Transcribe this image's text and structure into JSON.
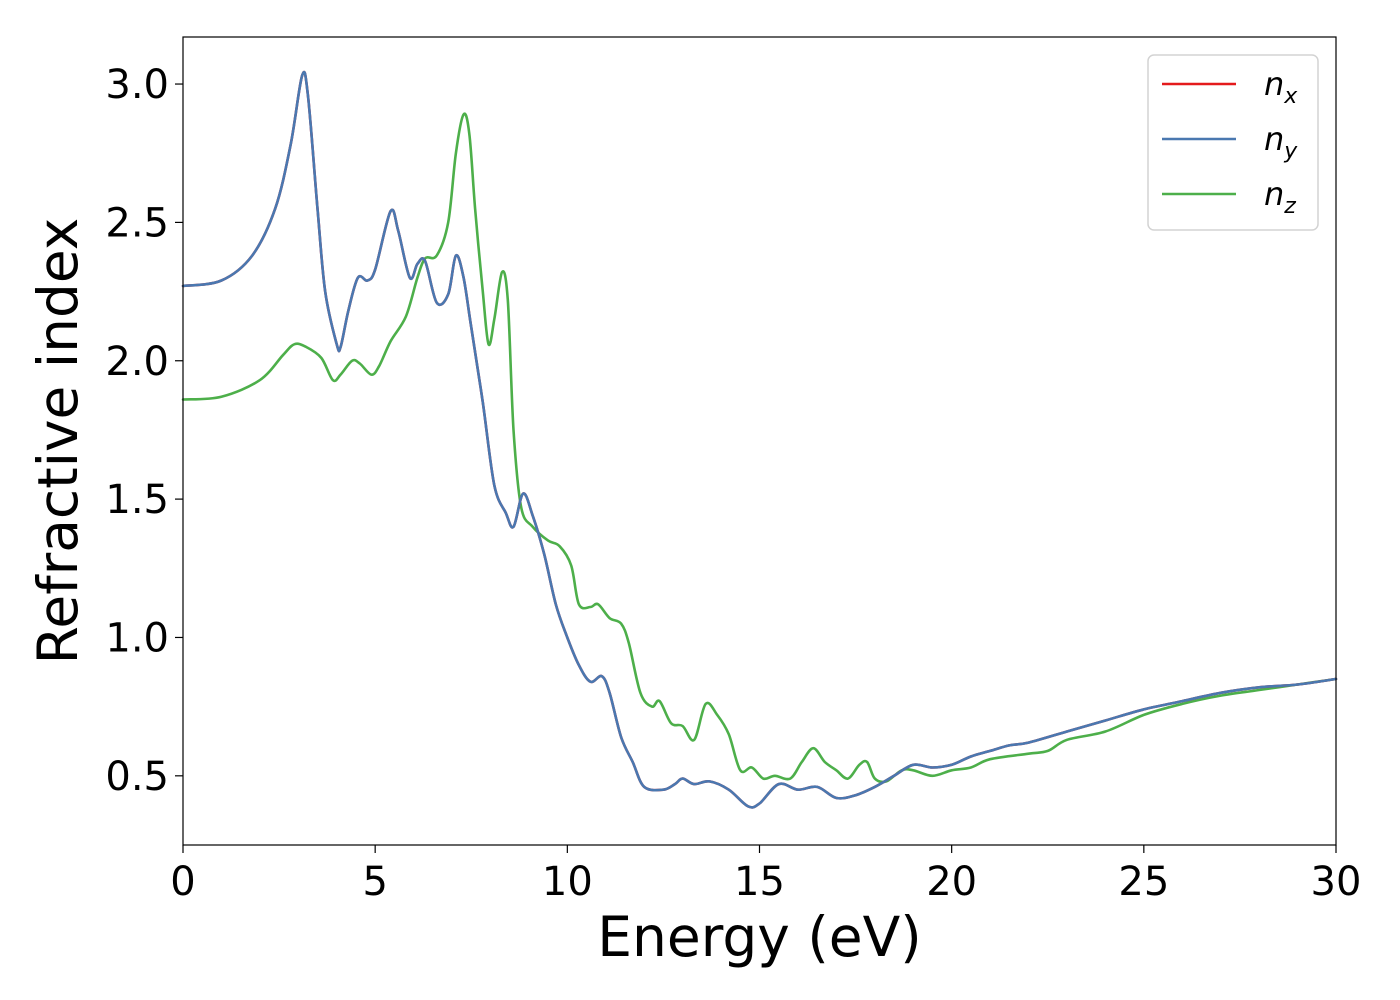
{
  "chart_data": {
    "type": "line",
    "title": "",
    "xlabel": "Energy (eV)",
    "ylabel": "Refractive index",
    "xlim": [
      0,
      30
    ],
    "ylim": [
      0.25,
      3.17
    ],
    "xticks": [
      "0",
      "5",
      "10",
      "15",
      "20",
      "25",
      "30"
    ],
    "yticks": [
      "0.5",
      "1.0",
      "1.5",
      "2.0",
      "2.5",
      "3.0"
    ],
    "grid": false,
    "legend_position": "top-right",
    "series": [
      {
        "name": "n_x",
        "label_base": "n",
        "label_sub": "x",
        "color": "#e41a1c",
        "points": [
          [
            0,
            2.27
          ],
          [
            1,
            2.29
          ],
          [
            1.8,
            2.38
          ],
          [
            2.4,
            2.55
          ],
          [
            2.8,
            2.78
          ],
          [
            3.1,
            3.03
          ],
          [
            3.25,
            2.96
          ],
          [
            3.5,
            2.55
          ],
          [
            3.7,
            2.25
          ],
          [
            4.0,
            2.06
          ],
          [
            4.1,
            2.05
          ],
          [
            4.3,
            2.18
          ],
          [
            4.55,
            2.3
          ],
          [
            4.8,
            2.29
          ],
          [
            5.0,
            2.33
          ],
          [
            5.4,
            2.54
          ],
          [
            5.6,
            2.47
          ],
          [
            5.9,
            2.3
          ],
          [
            6.1,
            2.35
          ],
          [
            6.3,
            2.36
          ],
          [
            6.6,
            2.21
          ],
          [
            6.9,
            2.24
          ],
          [
            7.1,
            2.38
          ],
          [
            7.3,
            2.3
          ],
          [
            7.5,
            2.12
          ],
          [
            7.8,
            1.85
          ],
          [
            8.1,
            1.55
          ],
          [
            8.4,
            1.45
          ],
          [
            8.6,
            1.4
          ],
          [
            8.85,
            1.52
          ],
          [
            9.1,
            1.44
          ],
          [
            9.4,
            1.3
          ],
          [
            9.7,
            1.12
          ],
          [
            10.0,
            1.0
          ],
          [
            10.3,
            0.9
          ],
          [
            10.6,
            0.84
          ],
          [
            10.9,
            0.86
          ],
          [
            11.1,
            0.8
          ],
          [
            11.4,
            0.64
          ],
          [
            11.7,
            0.55
          ],
          [
            12.0,
            0.46
          ],
          [
            12.5,
            0.45
          ],
          [
            12.8,
            0.47
          ],
          [
            13.0,
            0.49
          ],
          [
            13.3,
            0.47
          ],
          [
            13.7,
            0.48
          ],
          [
            14.2,
            0.45
          ],
          [
            14.7,
            0.39
          ],
          [
            15.0,
            0.4
          ],
          [
            15.5,
            0.47
          ],
          [
            16.0,
            0.45
          ],
          [
            16.5,
            0.46
          ],
          [
            17.0,
            0.42
          ],
          [
            17.5,
            0.43
          ],
          [
            18.0,
            0.46
          ],
          [
            18.5,
            0.5
          ],
          [
            19.0,
            0.54
          ],
          [
            19.5,
            0.53
          ],
          [
            20.0,
            0.54
          ],
          [
            20.5,
            0.57
          ],
          [
            21.0,
            0.59
          ],
          [
            21.5,
            0.61
          ],
          [
            22.0,
            0.62
          ],
          [
            23.0,
            0.66
          ],
          [
            24.0,
            0.7
          ],
          [
            25.0,
            0.74
          ],
          [
            26.0,
            0.77
          ],
          [
            27.0,
            0.8
          ],
          [
            28.0,
            0.82
          ],
          [
            29.0,
            0.83
          ],
          [
            30.0,
            0.85
          ]
        ]
      },
      {
        "name": "n_y",
        "label_base": "n",
        "label_sub": "y",
        "color": "#4a78b0",
        "points": [
          [
            0,
            2.27
          ],
          [
            1,
            2.29
          ],
          [
            1.8,
            2.38
          ],
          [
            2.4,
            2.55
          ],
          [
            2.8,
            2.78
          ],
          [
            3.1,
            3.03
          ],
          [
            3.25,
            2.96
          ],
          [
            3.5,
            2.55
          ],
          [
            3.7,
            2.25
          ],
          [
            4.0,
            2.06
          ],
          [
            4.1,
            2.05
          ],
          [
            4.3,
            2.18
          ],
          [
            4.55,
            2.3
          ],
          [
            4.8,
            2.29
          ],
          [
            5.0,
            2.33
          ],
          [
            5.4,
            2.54
          ],
          [
            5.6,
            2.47
          ],
          [
            5.9,
            2.3
          ],
          [
            6.1,
            2.35
          ],
          [
            6.3,
            2.36
          ],
          [
            6.6,
            2.21
          ],
          [
            6.9,
            2.24
          ],
          [
            7.1,
            2.38
          ],
          [
            7.3,
            2.3
          ],
          [
            7.5,
            2.12
          ],
          [
            7.8,
            1.85
          ],
          [
            8.1,
            1.55
          ],
          [
            8.4,
            1.45
          ],
          [
            8.6,
            1.4
          ],
          [
            8.85,
            1.52
          ],
          [
            9.1,
            1.44
          ],
          [
            9.4,
            1.3
          ],
          [
            9.7,
            1.12
          ],
          [
            10.0,
            1.0
          ],
          [
            10.3,
            0.9
          ],
          [
            10.6,
            0.84
          ],
          [
            10.9,
            0.86
          ],
          [
            11.1,
            0.8
          ],
          [
            11.4,
            0.64
          ],
          [
            11.7,
            0.55
          ],
          [
            12.0,
            0.46
          ],
          [
            12.5,
            0.45
          ],
          [
            12.8,
            0.47
          ],
          [
            13.0,
            0.49
          ],
          [
            13.3,
            0.47
          ],
          [
            13.7,
            0.48
          ],
          [
            14.2,
            0.45
          ],
          [
            14.7,
            0.39
          ],
          [
            15.0,
            0.4
          ],
          [
            15.5,
            0.47
          ],
          [
            16.0,
            0.45
          ],
          [
            16.5,
            0.46
          ],
          [
            17.0,
            0.42
          ],
          [
            17.5,
            0.43
          ],
          [
            18.0,
            0.46
          ],
          [
            18.5,
            0.5
          ],
          [
            19.0,
            0.54
          ],
          [
            19.5,
            0.53
          ],
          [
            20.0,
            0.54
          ],
          [
            20.5,
            0.57
          ],
          [
            21.0,
            0.59
          ],
          [
            21.5,
            0.61
          ],
          [
            22.0,
            0.62
          ],
          [
            23.0,
            0.66
          ],
          [
            24.0,
            0.7
          ],
          [
            25.0,
            0.74
          ],
          [
            26.0,
            0.77
          ],
          [
            27.0,
            0.8
          ],
          [
            28.0,
            0.82
          ],
          [
            29.0,
            0.83
          ],
          [
            30.0,
            0.85
          ]
        ]
      },
      {
        "name": "n_z",
        "label_base": "n",
        "label_sub": "z",
        "color": "#4daf4a",
        "points": [
          [
            0,
            1.86
          ],
          [
            1,
            1.87
          ],
          [
            2.0,
            1.93
          ],
          [
            2.6,
            2.02
          ],
          [
            2.9,
            2.06
          ],
          [
            3.2,
            2.05
          ],
          [
            3.6,
            2.01
          ],
          [
            3.9,
            1.93
          ],
          [
            4.1,
            1.95
          ],
          [
            4.4,
            2.0
          ],
          [
            4.6,
            1.99
          ],
          [
            4.9,
            1.95
          ],
          [
            5.1,
            1.98
          ],
          [
            5.4,
            2.07
          ],
          [
            5.8,
            2.16
          ],
          [
            6.1,
            2.3
          ],
          [
            6.3,
            2.37
          ],
          [
            6.6,
            2.38
          ],
          [
            6.9,
            2.5
          ],
          [
            7.1,
            2.75
          ],
          [
            7.3,
            2.89
          ],
          [
            7.45,
            2.82
          ],
          [
            7.6,
            2.55
          ],
          [
            7.8,
            2.25
          ],
          [
            7.95,
            2.06
          ],
          [
            8.1,
            2.15
          ],
          [
            8.3,
            2.32
          ],
          [
            8.45,
            2.22
          ],
          [
            8.6,
            1.75
          ],
          [
            8.8,
            1.47
          ],
          [
            9.1,
            1.4
          ],
          [
            9.5,
            1.35
          ],
          [
            9.8,
            1.33
          ],
          [
            10.1,
            1.26
          ],
          [
            10.3,
            1.12
          ],
          [
            10.6,
            1.11
          ],
          [
            10.8,
            1.12
          ],
          [
            11.1,
            1.07
          ],
          [
            11.4,
            1.05
          ],
          [
            11.6,
            0.98
          ],
          [
            11.9,
            0.8
          ],
          [
            12.2,
            0.75
          ],
          [
            12.4,
            0.77
          ],
          [
            12.7,
            0.69
          ],
          [
            13.0,
            0.68
          ],
          [
            13.3,
            0.63
          ],
          [
            13.6,
            0.76
          ],
          [
            13.9,
            0.72
          ],
          [
            14.2,
            0.65
          ],
          [
            14.5,
            0.52
          ],
          [
            14.8,
            0.53
          ],
          [
            15.1,
            0.49
          ],
          [
            15.4,
            0.5
          ],
          [
            15.8,
            0.49
          ],
          [
            16.1,
            0.55
          ],
          [
            16.4,
            0.6
          ],
          [
            16.7,
            0.55
          ],
          [
            17.0,
            0.52
          ],
          [
            17.3,
            0.49
          ],
          [
            17.6,
            0.54
          ],
          [
            17.8,
            0.55
          ],
          [
            18.0,
            0.49
          ],
          [
            18.3,
            0.48
          ],
          [
            18.7,
            0.52
          ],
          [
            19.0,
            0.52
          ],
          [
            19.5,
            0.5
          ],
          [
            20.0,
            0.52
          ],
          [
            20.5,
            0.53
          ],
          [
            21.0,
            0.56
          ],
          [
            22.0,
            0.58
          ],
          [
            22.5,
            0.59
          ],
          [
            23.0,
            0.63
          ],
          [
            24.0,
            0.66
          ],
          [
            25.0,
            0.72
          ],
          [
            26.0,
            0.76
          ],
          [
            27.0,
            0.79
          ],
          [
            28.0,
            0.81
          ],
          [
            29.0,
            0.83
          ],
          [
            30.0,
            0.85
          ]
        ]
      }
    ]
  }
}
